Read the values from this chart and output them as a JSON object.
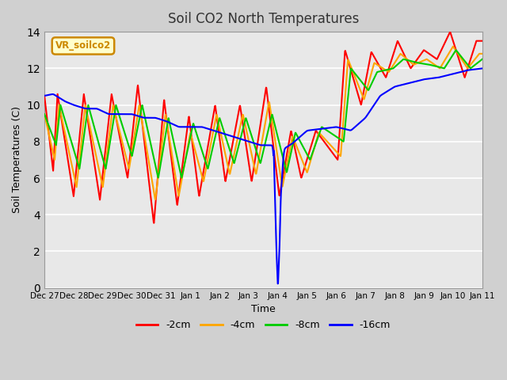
{
  "title": "Soil CO2 North Temperatures",
  "xlabel": "Time",
  "ylabel": "Soil Temperatures (C)",
  "ylim": [
    0,
    14
  ],
  "annotation_label": "VR_soilco2",
  "annotation_bg": "#ffffcc",
  "annotation_border": "#cc8800",
  "legend_entries": [
    "-2cm",
    "-4cm",
    "-8cm",
    "-16cm"
  ],
  "legend_colors": [
    "#ff0000",
    "#ffa500",
    "#00cc00",
    "#0000ff"
  ],
  "line_colors": {
    "-2cm": "#ff0000",
    "-4cm": "#ffa500",
    "-8cm": "#00cc00",
    "-16cm": "#0000ff"
  },
  "tick_labels": [
    "Dec 27",
    "Dec 28",
    "Dec 29",
    "Dec 30",
    "Dec 31",
    "Jan 1",
    "Jan 2",
    "Jan 3",
    "Jan 4",
    "Jan 5",
    "Jan 6",
    "Jan 7",
    "Jan 8",
    "Jan 9",
    "Jan 10",
    "Jan 11"
  ],
  "tick_positions": [
    0,
    1,
    2,
    3,
    4,
    5,
    6,
    7,
    8,
    9,
    10,
    11,
    12,
    13,
    14,
    15
  ],
  "yticks": [
    0,
    2,
    4,
    6,
    8,
    10,
    12,
    14
  ],
  "fig_bg": "#d0d0d0",
  "ax_bg": "#e8e8e8",
  "grid_color": "white"
}
